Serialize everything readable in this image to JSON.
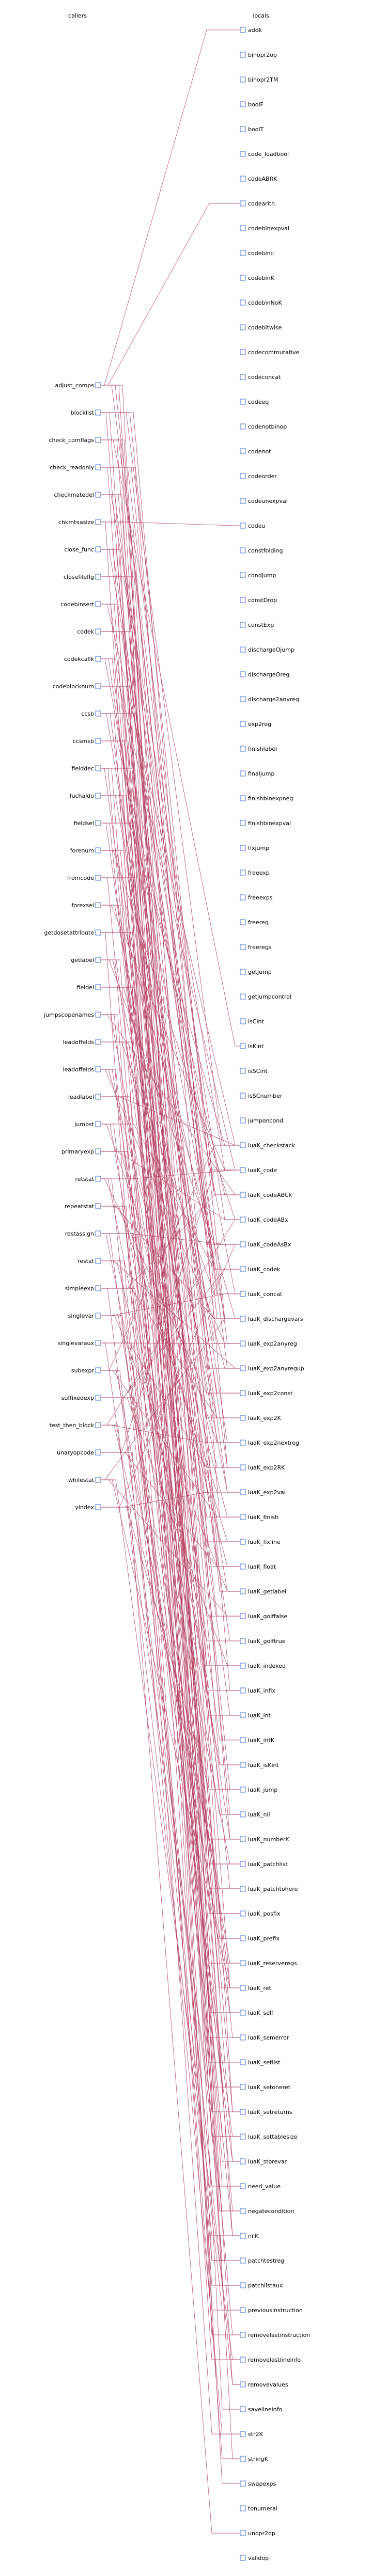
{
  "headers": {
    "callers": "callers",
    "locals": "locals"
  },
  "colors": {
    "edge": "#b23a5a",
    "port": "#4a6fd0"
  },
  "callers": [
    "adjust_comps",
    "blocklist",
    "check_comflags",
    "check_readonly",
    "checkmatedel",
    "chkmtxasize",
    "close_func",
    "closefileflg",
    "codebinsert",
    "codek",
    "codekcallk",
    "codeblocknum",
    "ccsb",
    "ccsmsb",
    "fielddec",
    "fuchaldo",
    "fieldsel",
    "forenum",
    "fromcode",
    "forexsel",
    "getdosetattribute",
    "getlabel",
    "fieldel",
    "jumpscopenames",
    "leadoffelds",
    "leadoffelds",
    "leadlabel",
    "jumpst",
    "primaryexp",
    "retstat",
    "repeatstat",
    "restassign",
    "restat",
    "simpleexp",
    "singlevar",
    "singlevaraux",
    "subexpr",
    "suffixedexp",
    "test_then_block",
    "unaryopcode",
    "whilestat",
    "yindex"
  ],
  "locals": [
    "addk",
    "binopr2op",
    "binopr2TM",
    "boolF",
    "boolT",
    "code_loadbool",
    "codeABRK",
    "codearith",
    "codebinexpval",
    "codebinc",
    "codebinK",
    "codebinNoK",
    "codebitwise",
    "codecommutative",
    "codeconcat",
    "codeeq",
    "codenotbinop",
    "codenot",
    "codeorder",
    "codeunexpval",
    "codeu",
    "constfolding",
    "condjump",
    "constDrop",
    "constExp",
    "dischargeOjump",
    "dischargeOreg",
    "discharge2anyreg",
    "exp2reg",
    "finishlabel",
    "finaljump",
    "finishbinexpneg",
    "finishbinexpval",
    "fixjump",
    "freeexp",
    "freeexps",
    "freereg",
    "freeregs",
    "getjump",
    "getjumpcontrol",
    "isCint",
    "isKint",
    "isSCint",
    "isSCnumber",
    "jumponcond",
    "luaK_checkstack",
    "luaK_code",
    "luaK_codeABCk",
    "luaK_codeABx",
    "luaK_codeAsBx",
    "luaK_codek",
    "luaK_concat",
    "luaK_dischargevars",
    "luaK_exp2anyreg",
    "luaK_exp2anyregup",
    "luaK_exp2const",
    "luaK_exp2K",
    "luaK_exp2nextreg",
    "luaK_exp2RK",
    "luaK_exp2val",
    "luaK_finish",
    "luaK_fixline",
    "luaK_float",
    "luaK_getlabel",
    "luaK_goiffalse",
    "luaK_goiftrue",
    "luaK_indexed",
    "luaK_infix",
    "luaK_int",
    "luaK_intK",
    "luaK_isKint",
    "luaK_jump",
    "luaK_nil",
    "luaK_numberK",
    "luaK_patchlist",
    "luaK_patchtohere",
    "luaK_posfix",
    "luaK_prefix",
    "luaK_reserveregs",
    "luaK_ret",
    "luaK_self",
    "luaK_semerror",
    "luaK_setlist",
    "luaK_setoneret",
    "luaK_setreturns",
    "luaK_settablesize",
    "luaK_storevar",
    "need_value",
    "negatecondition",
    "nilK",
    "patchtestreg",
    "patchlistaux",
    "previousinstruction",
    "removelastinstruction",
    "removelastlineinfo",
    "removevalues",
    "savelineinfo",
    "str2K",
    "stringK",
    "swapexps",
    "tonumeral",
    "unopr2op",
    "validop"
  ],
  "edges": [
    [
      0,
      0
    ],
    [
      0,
      7
    ],
    [
      0,
      46
    ],
    [
      0,
      52
    ],
    [
      0,
      76
    ],
    [
      0,
      88
    ],
    [
      1,
      45
    ],
    [
      1,
      52
    ],
    [
      1,
      58
    ],
    [
      1,
      79
    ],
    [
      1,
      89
    ],
    [
      2,
      41
    ],
    [
      2,
      66
    ],
    [
      2,
      74
    ],
    [
      2,
      80
    ],
    [
      3,
      47
    ],
    [
      3,
      52
    ],
    [
      3,
      60
    ],
    [
      3,
      83
    ],
    [
      4,
      46
    ],
    [
      4,
      54
    ],
    [
      4,
      73
    ],
    [
      4,
      98
    ],
    [
      5,
      20
    ],
    [
      5,
      49
    ],
    [
      5,
      62
    ],
    [
      5,
      85
    ],
    [
      6,
      47
    ],
    [
      6,
      51
    ],
    [
      6,
      70
    ],
    [
      6,
      91
    ],
    [
      7,
      48
    ],
    [
      7,
      53
    ],
    [
      7,
      67
    ],
    [
      7,
      84
    ],
    [
      8,
      45
    ],
    [
      8,
      56
    ],
    [
      8,
      75
    ],
    [
      8,
      90
    ],
    [
      9,
      50
    ],
    [
      9,
      57
    ],
    [
      9,
      63
    ],
    [
      9,
      96
    ],
    [
      10,
      52
    ],
    [
      10,
      59
    ],
    [
      10,
      71
    ],
    [
      10,
      86
    ],
    [
      11,
      46
    ],
    [
      11,
      54
    ],
    [
      11,
      78
    ],
    [
      11,
      93
    ],
    [
      12,
      49
    ],
    [
      12,
      55
    ],
    [
      12,
      61
    ],
    [
      12,
      87
    ],
    [
      13,
      47
    ],
    [
      13,
      58
    ],
    [
      13,
      72
    ],
    [
      13,
      95
    ],
    [
      14,
      51
    ],
    [
      14,
      60
    ],
    [
      14,
      76
    ],
    [
      14,
      83
    ],
    [
      15,
      53
    ],
    [
      15,
      64
    ],
    [
      15,
      79
    ],
    [
      15,
      99
    ],
    [
      16,
      45
    ],
    [
      16,
      57
    ],
    [
      16,
      68
    ],
    [
      16,
      81
    ],
    [
      17,
      48
    ],
    [
      17,
      55
    ],
    [
      17,
      74
    ],
    [
      17,
      92
    ],
    [
      18,
      50
    ],
    [
      18,
      62
    ],
    [
      18,
      77
    ],
    [
      18,
      85
    ],
    [
      19,
      46
    ],
    [
      19,
      59
    ],
    [
      19,
      65
    ],
    [
      19,
      88
    ],
    [
      20,
      52
    ],
    [
      20,
      66
    ],
    [
      20,
      80
    ],
    [
      20,
      97
    ],
    [
      21,
      49
    ],
    [
      21,
      56
    ],
    [
      21,
      71
    ],
    [
      21,
      90
    ],
    [
      22,
      54
    ],
    [
      22,
      63
    ],
    [
      22,
      75
    ],
    [
      22,
      84
    ],
    [
      23,
      47
    ],
    [
      23,
      61
    ],
    [
      23,
      78
    ],
    [
      23,
      94
    ],
    [
      24,
      51
    ],
    [
      24,
      58
    ],
    [
      24,
      69
    ],
    [
      24,
      86
    ],
    [
      25,
      53
    ],
    [
      25,
      60
    ],
    [
      25,
      73
    ],
    [
      25,
      89
    ],
    [
      26,
      45
    ],
    [
      26,
      64
    ],
    [
      26,
      82
    ],
    [
      26,
      91
    ],
    [
      27,
      50
    ],
    [
      27,
      57
    ],
    [
      27,
      70
    ],
    [
      27,
      83
    ],
    [
      28,
      48
    ],
    [
      28,
      62
    ],
    [
      28,
      79
    ],
    [
      28,
      93
    ],
    [
      29,
      46
    ],
    [
      29,
      55
    ],
    [
      29,
      67
    ],
    [
      29,
      87
    ],
    [
      30,
      52
    ],
    [
      30,
      59
    ],
    [
      30,
      76
    ],
    [
      30,
      98
    ],
    [
      31,
      49
    ],
    [
      31,
      61
    ],
    [
      31,
      74
    ],
    [
      31,
      85
    ],
    [
      32,
      54
    ],
    [
      32,
      65
    ],
    [
      32,
      81
    ],
    [
      32,
      90
    ],
    [
      33,
      47
    ],
    [
      33,
      56
    ],
    [
      33,
      72
    ],
    [
      33,
      88
    ],
    [
      34,
      51
    ],
    [
      34,
      63
    ],
    [
      34,
      78
    ],
    [
      34,
      95
    ],
    [
      35,
      53
    ],
    [
      35,
      58
    ],
    [
      35,
      68
    ],
    [
      35,
      84
    ],
    [
      36,
      45
    ],
    [
      36,
      60
    ],
    [
      36,
      77
    ],
    [
      36,
      92
    ],
    [
      37,
      50
    ],
    [
      37,
      66
    ],
    [
      37,
      80
    ],
    [
      37,
      86
    ],
    [
      38,
      48
    ],
    [
      38,
      57
    ],
    [
      38,
      73
    ],
    [
      38,
      89
    ],
    [
      39,
      46
    ],
    [
      39,
      62
    ],
    [
      39,
      75
    ],
    [
      39,
      97
    ],
    [
      40,
      52
    ],
    [
      40,
      64
    ],
    [
      40,
      79
    ],
    [
      40,
      94
    ],
    [
      41,
      49
    ],
    [
      41,
      59
    ],
    [
      41,
      71
    ],
    [
      41,
      101
    ]
  ]
}
